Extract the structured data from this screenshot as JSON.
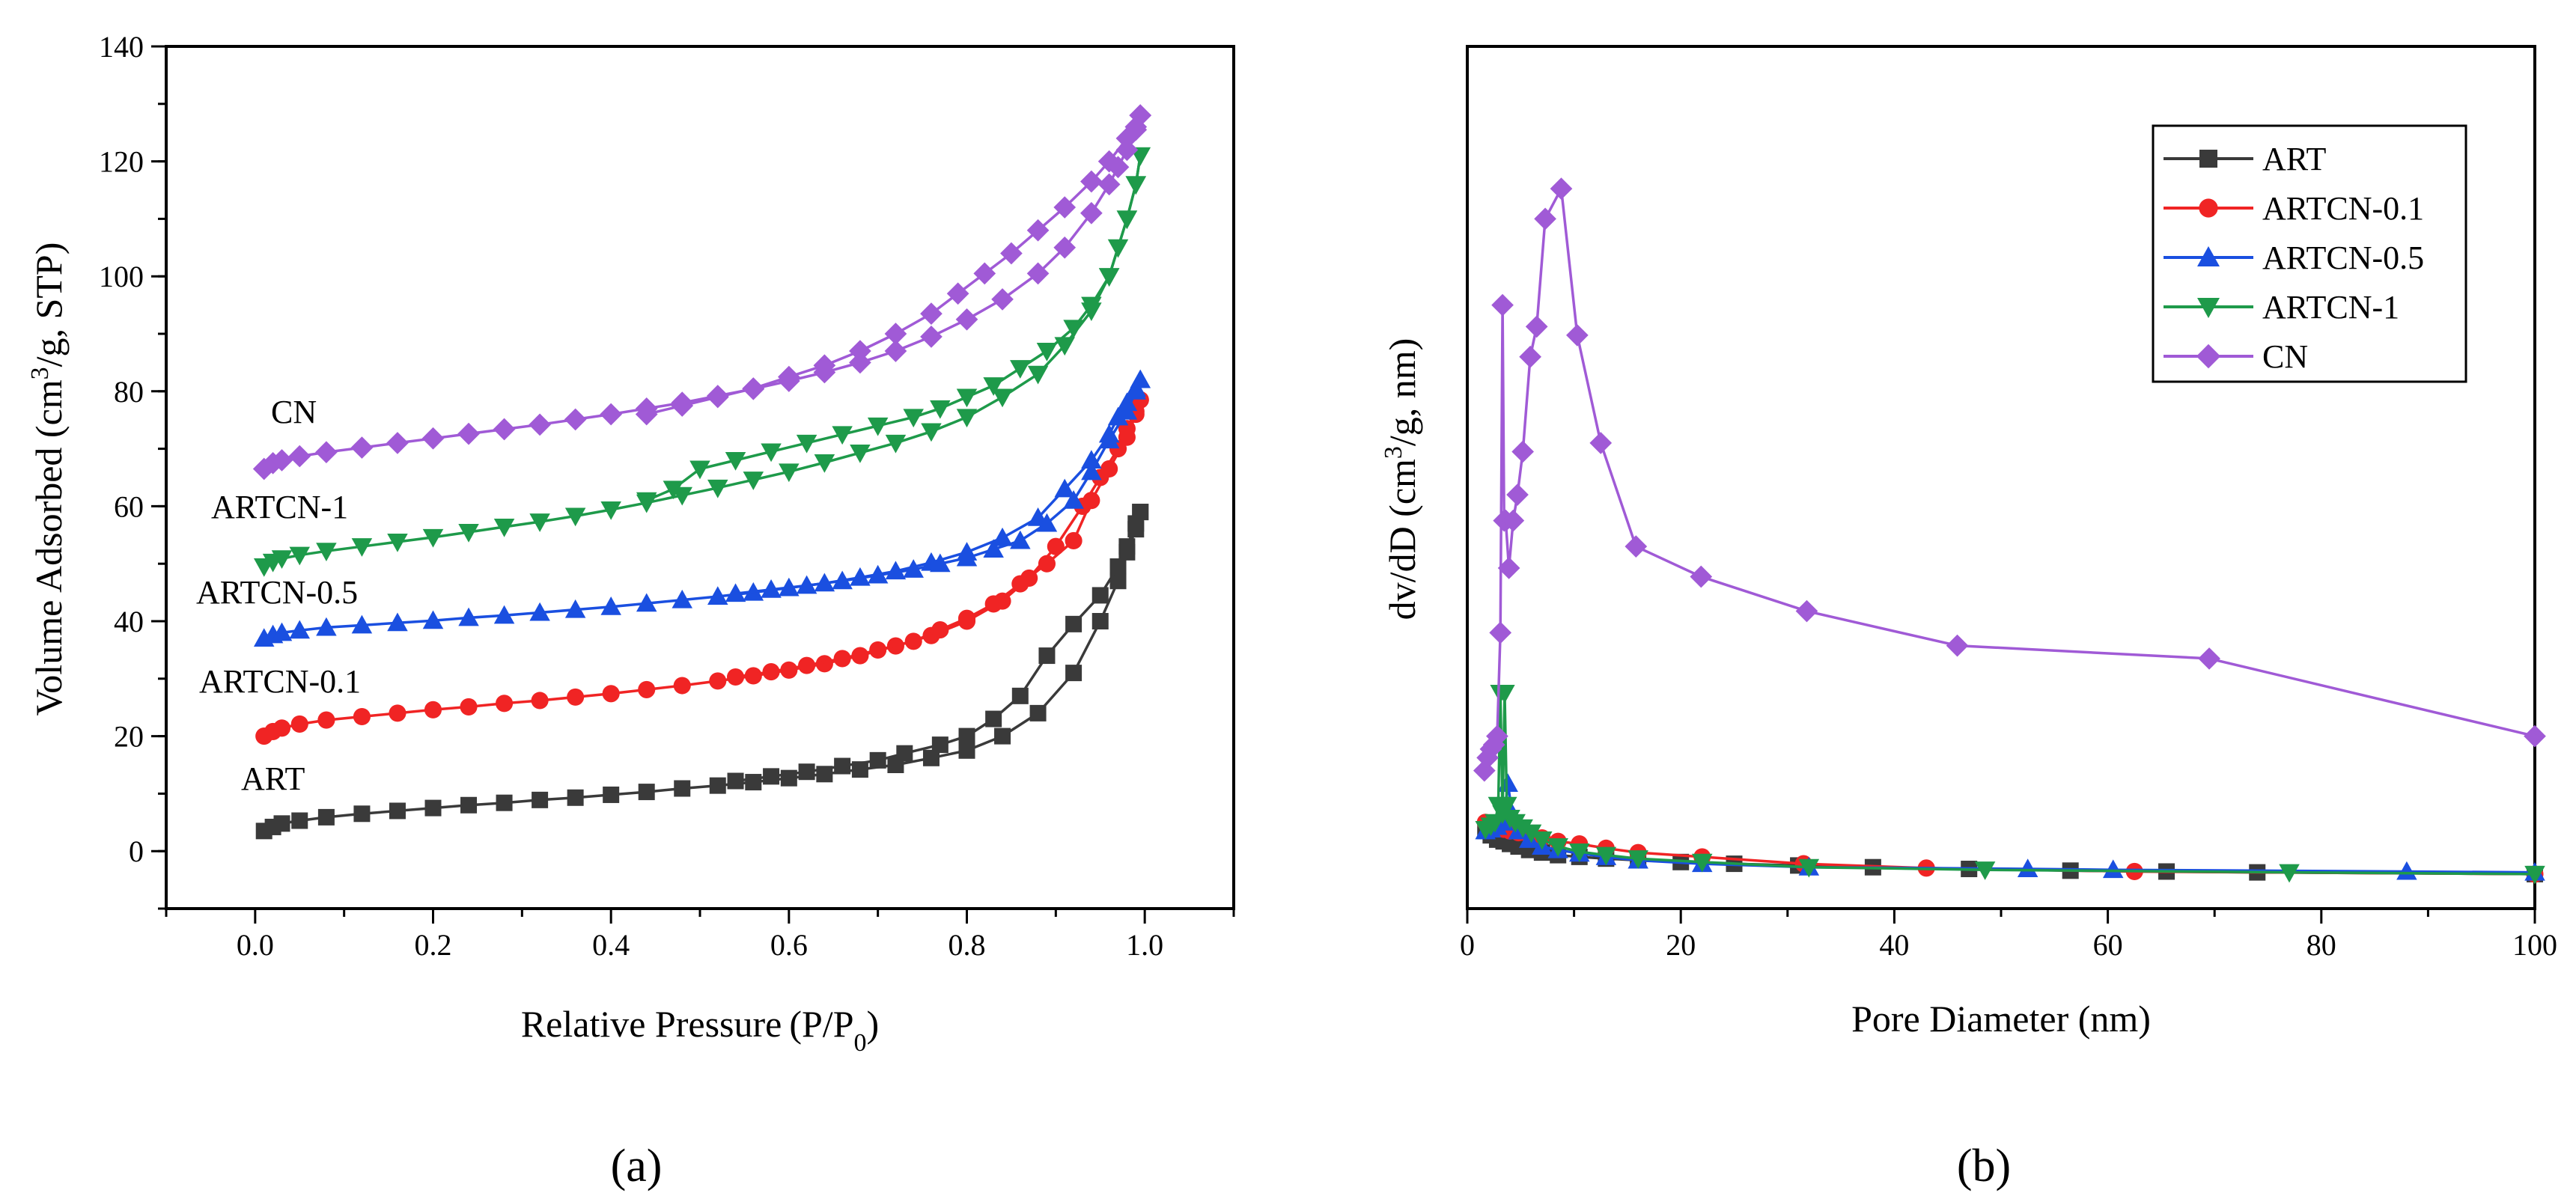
{
  "colors": {
    "ART": "#3a3a3a",
    "ARTCN-0.1": "#f02424",
    "ARTCN-0.5": "#1a4fe0",
    "ARTCN-1": "#1e9a4a",
    "CN": "#a05ad6"
  },
  "chart_data": [
    {
      "panel_label": "(a)",
      "type": "line",
      "xlabel": "Relative Pressure (P/P",
      "xlabel_sub": "0",
      "xlabel_close": ")",
      "ylabel": "Volume Adsorbed (cm",
      "ylabel_sup": "3",
      "ylabel_rest": "/g, STP)",
      "xlim": [
        -0.1,
        1.1
      ],
      "ylim": [
        -10,
        140
      ],
      "xticks": [
        0.0,
        0.2,
        0.4,
        0.6,
        0.8,
        1.0
      ],
      "xtick_labels": [
        "0.0",
        "0.2",
        "0.4",
        "0.6",
        "0.8",
        "1.0"
      ],
      "yticks": [
        0,
        20,
        40,
        60,
        80,
        100,
        120,
        140
      ],
      "ytick_labels": [
        "0",
        "20",
        "40",
        "60",
        "80",
        "100",
        "120",
        "140"
      ],
      "annotations": [
        "CN",
        "ARTCN-1",
        "ARTCN-0.5",
        "ARTCN-0.1",
        "ART"
      ],
      "series": [
        {
          "name": "ART",
          "marker": "square",
          "adsorption": {
            "x": [
              0.01,
              0.02,
              0.03,
              0.05,
              0.08,
              0.12,
              0.16,
              0.2,
              0.24,
              0.28,
              0.32,
              0.36,
              0.4,
              0.44,
              0.48,
              0.52,
              0.56,
              0.6,
              0.64,
              0.68,
              0.72,
              0.76,
              0.8,
              0.84,
              0.88,
              0.92,
              0.95,
              0.97,
              0.98,
              0.99,
              0.995
            ],
            "y": [
              3.5,
              4.2,
              4.8,
              5.3,
              5.9,
              6.5,
              7.0,
              7.5,
              8.0,
              8.4,
              8.9,
              9.3,
              9.8,
              10.3,
              10.9,
              11.4,
              12.0,
              12.7,
              13.4,
              14.2,
              15.0,
              16.2,
              17.5,
              20.0,
              24.0,
              31.0,
              40.0,
              47.0,
              52.0,
              56.0,
              59.0
            ]
          },
          "desorption": {
            "x": [
              0.995,
              0.99,
              0.98,
              0.97,
              0.95,
              0.92,
              0.89,
              0.86,
              0.83,
              0.8,
              0.77,
              0.73,
              0.7,
              0.66,
              0.62,
              0.58,
              0.54
            ],
            "y": [
              59.0,
              57.0,
              53.0,
              49.5,
              44.5,
              39.5,
              34.0,
              27.0,
              23.0,
              20.0,
              18.5,
              17.0,
              15.8,
              14.8,
              13.8,
              13.0,
              12.2
            ]
          }
        },
        {
          "name": "ARTCN-0.1",
          "marker": "circle",
          "adsorption": {
            "x": [
              0.01,
              0.02,
              0.03,
              0.05,
              0.08,
              0.12,
              0.16,
              0.2,
              0.24,
              0.28,
              0.32,
              0.36,
              0.4,
              0.44,
              0.48,
              0.52,
              0.56,
              0.6,
              0.64,
              0.68,
              0.72,
              0.76,
              0.8,
              0.84,
              0.87,
              0.9,
              0.93,
              0.95,
              0.97,
              0.98,
              0.99,
              0.995
            ],
            "y": [
              20.0,
              20.8,
              21.4,
              22.1,
              22.8,
              23.4,
              24.0,
              24.6,
              25.1,
              25.7,
              26.2,
              26.8,
              27.4,
              28.1,
              28.8,
              29.6,
              30.5,
              31.5,
              32.6,
              34.0,
              35.7,
              37.5,
              40.0,
              43.5,
              47.5,
              53.0,
              60.0,
              65.0,
              70.0,
              73.5,
              76.5,
              78.5
            ]
          },
          "desorption": {
            "x": [
              0.995,
              0.99,
              0.98,
              0.96,
              0.94,
              0.92,
              0.89,
              0.86,
              0.83,
              0.8,
              0.77,
              0.74,
              0.7,
              0.66,
              0.62,
              0.58,
              0.54
            ],
            "y": [
              78.5,
              76.0,
              72.0,
              66.5,
              61.0,
              54.0,
              50.0,
              46.5,
              43.0,
              40.5,
              38.5,
              36.5,
              35.0,
              33.5,
              32.3,
              31.2,
              30.3
            ]
          }
        },
        {
          "name": "ARTCN-0.5",
          "marker": "triangle-up",
          "adsorption": {
            "x": [
              0.01,
              0.02,
              0.03,
              0.05,
              0.08,
              0.12,
              0.16,
              0.2,
              0.24,
              0.28,
              0.32,
              0.36,
              0.4,
              0.44,
              0.48,
              0.52,
              0.56,
              0.6,
              0.64,
              0.68,
              0.72,
              0.76,
              0.8,
              0.84,
              0.88,
              0.91,
              0.94,
              0.96,
              0.97,
              0.98,
              0.99,
              0.995
            ],
            "y": [
              37.0,
              37.6,
              38.0,
              38.4,
              38.9,
              39.3,
              39.7,
              40.1,
              40.6,
              41.0,
              41.5,
              42.0,
              42.5,
              43.1,
              43.7,
              44.3,
              45.0,
              45.8,
              46.6,
              47.6,
              48.7,
              50.2,
              52.0,
              54.5,
              58.0,
              63.0,
              68.0,
              72.5,
              75.5,
              78.0,
              80.5,
              82.0
            ]
          },
          "desorption": {
            "x": [
              0.995,
              0.99,
              0.98,
              0.96,
              0.94,
              0.92,
              0.89,
              0.86,
              0.83,
              0.8,
              0.77,
              0.74,
              0.7,
              0.66,
              0.62,
              0.58,
              0.54
            ],
            "y": [
              82.0,
              80.0,
              76.5,
              71.5,
              66.0,
              61.0,
              57.0,
              54.0,
              52.5,
              51.0,
              50.0,
              49.0,
              48.0,
              47.0,
              46.2,
              45.5,
              44.8
            ]
          }
        },
        {
          "name": "ARTCN-1",
          "marker": "triangle-down",
          "adsorption": {
            "x": [
              0.01,
              0.02,
              0.03,
              0.05,
              0.08,
              0.12,
              0.16,
              0.2,
              0.24,
              0.28,
              0.32,
              0.36,
              0.4,
              0.44,
              0.48,
              0.52,
              0.56,
              0.6,
              0.64,
              0.68,
              0.72,
              0.76,
              0.8,
              0.84,
              0.88,
              0.91,
              0.94,
              0.96,
              0.97,
              0.98,
              0.99,
              0.995
            ],
            "y": [
              49.5,
              50.3,
              50.9,
              51.5,
              52.2,
              53.0,
              53.8,
              54.6,
              55.5,
              56.4,
              57.3,
              58.3,
              59.4,
              60.6,
              61.9,
              63.2,
              64.6,
              66.0,
              67.6,
              69.3,
              71.0,
              73.0,
              75.5,
              79.0,
              83.0,
              88.0,
              94.0,
              100.0,
              105.0,
              110.0,
              116.0,
              121.0
            ]
          },
          "desorption": {
            "x": [
              0.995,
              0.99,
              0.98,
              0.96,
              0.94,
              0.92,
              0.89,
              0.86,
              0.83,
              0.8,
              0.77,
              0.74,
              0.7,
              0.66,
              0.62,
              0.58,
              0.54,
              0.5,
              0.47,
              0.44
            ],
            "y": [
              121.0,
              116.0,
              110.0,
              100.0,
              95.0,
              91.0,
              87.0,
              84.0,
              81.0,
              79.0,
              77.0,
              75.5,
              74.0,
              72.5,
              71.0,
              69.5,
              68.0,
              66.5,
              63.0,
              61.0
            ]
          }
        },
        {
          "name": "CN",
          "marker": "diamond",
          "adsorption": {
            "x": [
              0.01,
              0.02,
              0.03,
              0.05,
              0.08,
              0.12,
              0.16,
              0.2,
              0.24,
              0.28,
              0.32,
              0.36,
              0.4,
              0.44,
              0.48,
              0.52,
              0.56,
              0.6,
              0.64,
              0.68,
              0.72,
              0.76,
              0.8,
              0.84,
              0.88,
              0.91,
              0.94,
              0.96,
              0.97,
              0.98,
              0.99,
              0.995
            ],
            "y": [
              66.5,
              67.5,
              68.0,
              68.7,
              69.4,
              70.2,
              71.0,
              71.8,
              72.6,
              73.4,
              74.2,
              75.1,
              76.0,
              77.0,
              78.0,
              79.2,
              80.4,
              81.8,
              83.3,
              85.0,
              87.0,
              89.5,
              92.5,
              96.0,
              100.5,
              105.0,
              111.0,
              116.0,
              119.0,
              122.0,
              125.5,
              128.0
            ]
          },
          "desorption": {
            "x": [
              0.995,
              0.99,
              0.98,
              0.96,
              0.94,
              0.91,
              0.88,
              0.85,
              0.82,
              0.79,
              0.76,
              0.72,
              0.68,
              0.64,
              0.6,
              0.56,
              0.52,
              0.48,
              0.44
            ],
            "y": [
              128.0,
              126.0,
              124.0,
              120.0,
              116.5,
              112.0,
              108.0,
              104.0,
              100.5,
              97.0,
              93.5,
              90.0,
              87.0,
              84.5,
              82.5,
              80.5,
              79.0,
              77.5,
              76.0
            ]
          }
        }
      ]
    },
    {
      "panel_label": "(b)",
      "type": "line",
      "xlabel": "Pore Diameter (nm)",
      "ylabel": "dv/dD (cm",
      "ylabel_sup": "3",
      "ylabel_rest": "/g, nm)",
      "xlim": [
        0,
        100
      ],
      "ylim": [
        0,
        1.0
      ],
      "xticks": [
        0,
        20,
        40,
        60,
        80,
        100
      ],
      "xtick_labels": [
        "0",
        "20",
        "40",
        "60",
        "80",
        "100"
      ],
      "legend_position": "top-right",
      "legend": [
        "ART",
        "ARTCN-0.1",
        "ARTCN-0.5",
        "ARTCN-1",
        "CN"
      ],
      "series": [
        {
          "name": "ART",
          "marker": "square",
          "x": [
            1.7,
            2.2,
            2.8,
            3.4,
            4.0,
            4.8,
            5.8,
            7.0,
            8.5,
            10.5,
            13.0,
            16.0,
            20.0,
            25.0,
            31.0,
            38.0,
            47.0,
            56.5,
            65.5,
            74.0,
            100.0
          ],
          "y": [
            0.09,
            0.085,
            0.08,
            0.078,
            0.075,
            0.072,
            0.068,
            0.065,
            0.062,
            0.06,
            0.058,
            0.056,
            0.054,
            0.052,
            0.05,
            0.048,
            0.046,
            0.044,
            0.043,
            0.042,
            0.04
          ]
        },
        {
          "name": "ARTCN-0.1",
          "marker": "circle",
          "x": [
            1.7,
            2.2,
            2.8,
            3.4,
            4.0,
            4.8,
            5.8,
            7.0,
            8.5,
            10.5,
            13.0,
            16.0,
            22.0,
            31.5,
            43.0,
            62.5,
            100.0
          ],
          "y": [
            0.1,
            0.098,
            0.095,
            0.092,
            0.09,
            0.088,
            0.085,
            0.082,
            0.078,
            0.075,
            0.07,
            0.065,
            0.06,
            0.052,
            0.047,
            0.043,
            0.04
          ]
        },
        {
          "name": "ARTCN-0.5",
          "marker": "triangle-up",
          "x": [
            1.7,
            2.2,
            2.8,
            3.4,
            3.8,
            4.2,
            4.8,
            5.8,
            7.0,
            8.5,
            10.5,
            13.0,
            16.0,
            22.0,
            32.0,
            52.5,
            60.5,
            88.0,
            100.0
          ],
          "y": [
            0.09,
            0.092,
            0.095,
            0.1,
            0.145,
            0.11,
            0.09,
            0.08,
            0.072,
            0.068,
            0.064,
            0.06,
            0.056,
            0.052,
            0.048,
            0.046,
            0.045,
            0.043,
            0.042
          ]
        },
        {
          "name": "ARTCN-1",
          "marker": "triangle-down",
          "x": [
            1.7,
            2.2,
            2.6,
            2.9,
            3.1,
            3.3,
            3.5,
            3.7,
            4.0,
            4.5,
            5.2,
            6.0,
            7.0,
            8.5,
            10.5,
            13.0,
            16.0,
            22.0,
            32.0,
            48.5,
            77.0,
            100.0
          ],
          "y": [
            0.092,
            0.096,
            0.1,
            0.12,
            0.25,
            0.11,
            0.25,
            0.12,
            0.105,
            0.1,
            0.094,
            0.088,
            0.08,
            0.072,
            0.066,
            0.062,
            0.058,
            0.054,
            0.048,
            0.045,
            0.042,
            0.04
          ]
        },
        {
          "name": "CN",
          "marker": "diamond",
          "x": [
            1.6,
            1.9,
            2.2,
            2.5,
            2.8,
            3.1,
            3.3,
            3.45,
            3.6,
            3.9,
            4.3,
            4.7,
            5.2,
            5.9,
            6.5,
            7.3,
            8.8,
            10.3,
            12.5,
            15.8,
            21.9,
            31.8,
            45.9,
            69.5,
            100.0
          ],
          "y": [
            0.16,
            0.175,
            0.185,
            0.19,
            0.2,
            0.32,
            0.7,
            0.45,
            0.45,
            0.395,
            0.45,
            0.48,
            0.53,
            0.64,
            0.675,
            0.8,
            0.835,
            0.665,
            0.54,
            0.42,
            0.385,
            0.345,
            0.305,
            0.29,
            0.2
          ]
        }
      ]
    }
  ]
}
